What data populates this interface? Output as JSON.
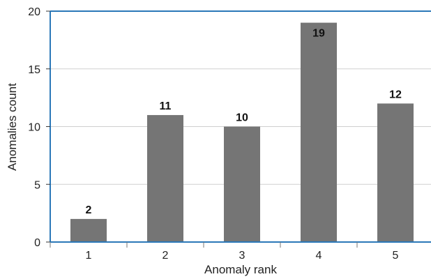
{
  "chart_data": {
    "type": "bar",
    "categories": [
      "1",
      "2",
      "3",
      "4",
      "5"
    ],
    "values": [
      2,
      11,
      10,
      19,
      12
    ],
    "data_labels": [
      "2",
      "11",
      "10",
      "19",
      "12"
    ],
    "title": "",
    "xlabel": "Anomaly rank",
    "ylabel": "Anomalies count",
    "ylim": [
      0,
      20
    ],
    "yticks": [
      0,
      5,
      10,
      15,
      20
    ],
    "grid": true,
    "bar_color": "#757575",
    "axis_color": "#2b78b8",
    "grid_color": "#cfcfcf",
    "legend": "none"
  }
}
